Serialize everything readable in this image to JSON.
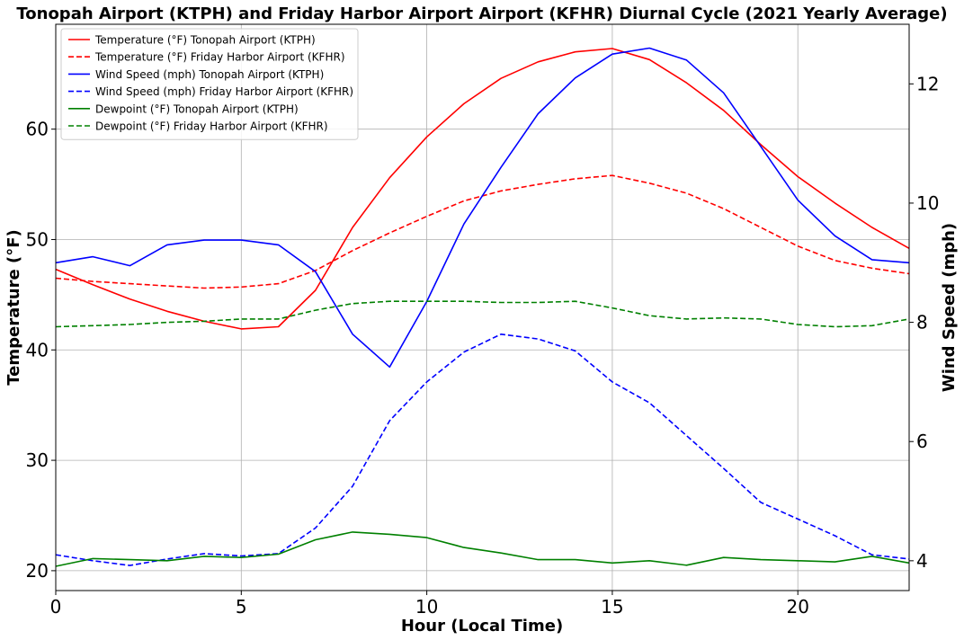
{
  "chart_data": {
    "type": "line",
    "title": "Tonopah Airport (KTPH) and Friday Harbor Airport Airport (KFHR) Diurnal Cycle (2021 Yearly Average)",
    "xlabel": "Hour (Local Time)",
    "ylabel_left": "Temperature (°F)",
    "ylabel_right": "Wind Speed (mph)",
    "x": [
      0,
      1,
      2,
      3,
      4,
      5,
      6,
      7,
      8,
      9,
      10,
      11,
      12,
      13,
      14,
      15,
      16,
      17,
      18,
      19,
      20,
      21,
      22,
      23
    ],
    "xlim": [
      0,
      23
    ],
    "ylim_left": [
      18.2,
      69.5
    ],
    "ylim_right": [
      3.5,
      13.0
    ],
    "x_ticks": [
      "0",
      "5",
      "10",
      "15",
      "20"
    ],
    "y_ticks_left": [
      "20",
      "30",
      "40",
      "50",
      "60"
    ],
    "y_ticks_right": [
      "4",
      "6",
      "8",
      "10",
      "12"
    ],
    "grid": true,
    "legend_position": "top-left",
    "series": [
      {
        "name": "Temperature (°F) Tonopah Airport (KTPH)",
        "axis": "left",
        "color": "#ff0000",
        "dash": "solid",
        "values": [
          47.3,
          45.9,
          44.6,
          43.5,
          42.6,
          41.9,
          42.1,
          45.4,
          51.1,
          55.6,
          59.3,
          62.3,
          64.6,
          66.1,
          67.0,
          67.3,
          66.3,
          64.2,
          61.7,
          58.6,
          55.7,
          53.3,
          51.1,
          49.2
        ]
      },
      {
        "name": "Temperature (°F) Friday Harbor Airport (KFHR)",
        "axis": "left",
        "color": "#ff0000",
        "dash": "dashed",
        "values": [
          46.5,
          46.2,
          46.0,
          45.8,
          45.6,
          45.7,
          46.0,
          47.2,
          49.0,
          50.6,
          52.1,
          53.5,
          54.4,
          55.0,
          55.5,
          55.8,
          55.1,
          54.2,
          52.8,
          51.1,
          49.4,
          48.1,
          47.4,
          46.9
        ]
      },
      {
        "name": "Wind Speed (mph) Tonopah Airport (KTPH)",
        "axis": "right",
        "color": "#0000ff",
        "dash": "solid",
        "values": [
          9.0,
          9.1,
          8.95,
          9.3,
          9.38,
          9.38,
          9.3,
          8.85,
          7.8,
          7.25,
          8.35,
          9.65,
          10.6,
          11.5,
          12.1,
          12.5,
          12.6,
          12.4,
          11.85,
          10.95,
          10.05,
          9.45,
          9.05,
          9.0
        ]
      },
      {
        "name": "Wind Speed (mph) Friday Harbor Airport (KFHR)",
        "axis": "right",
        "color": "#0000ff",
        "dash": "dashed",
        "values": [
          4.1,
          4.0,
          3.92,
          4.03,
          4.12,
          4.08,
          4.12,
          4.55,
          5.25,
          6.35,
          7.0,
          7.5,
          7.8,
          7.72,
          7.52,
          7.0,
          6.65,
          6.1,
          5.55,
          4.98,
          4.7,
          4.42,
          4.1,
          4.03
        ]
      },
      {
        "name": "Dewpoint (°F) Tonopah Airport (KTPH)",
        "axis": "left",
        "color": "#008000",
        "dash": "solid",
        "values": [
          20.4,
          21.1,
          21.0,
          20.9,
          21.3,
          21.2,
          21.5,
          22.8,
          23.5,
          23.3,
          23.0,
          22.1,
          21.6,
          21.0,
          21.0,
          20.7,
          20.9,
          20.5,
          21.2,
          21.0,
          20.9,
          20.8,
          21.3,
          20.7
        ]
      },
      {
        "name": "Dewpoint (°F) Friday Harbor Airport (KFHR)",
        "axis": "left",
        "color": "#008000",
        "dash": "dashed",
        "values": [
          42.1,
          42.2,
          42.3,
          42.5,
          42.6,
          42.8,
          42.8,
          43.6,
          44.2,
          44.4,
          44.4,
          44.4,
          44.3,
          44.3,
          44.4,
          43.8,
          43.1,
          42.8,
          42.9,
          42.8,
          42.3,
          42.1,
          42.2,
          42.8
        ]
      }
    ]
  }
}
